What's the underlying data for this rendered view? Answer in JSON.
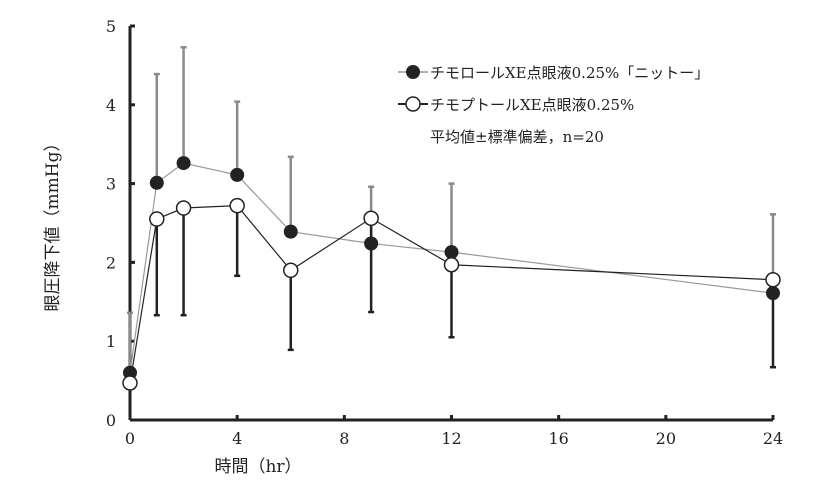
{
  "chart_data": {
    "type": "line",
    "title": "",
    "xlabel": "時間（hr）",
    "ylabel": "眼圧降下値（mmHg）",
    "xlim": [
      0,
      24
    ],
    "ylim": [
      0,
      5
    ],
    "xticks": [
      0,
      4,
      8,
      12,
      16,
      20,
      24
    ],
    "yticks": [
      0,
      1,
      2,
      3,
      4,
      5
    ],
    "grid": false,
    "legend_position": "top-right",
    "note": "平均値±標準偏差，n=20",
    "x": [
      0,
      1,
      2,
      4,
      6,
      9,
      12,
      24
    ],
    "series": [
      {
        "name": "チモロールXE点眼液0.25%「ニットー」",
        "marker": "filled-circle",
        "line_color": "#999999",
        "error_direction": "up",
        "values": [
          0.6,
          3.01,
          3.26,
          3.11,
          2.39,
          2.24,
          2.13,
          1.61
        ],
        "sd_bound": [
          1.36,
          4.39,
          4.73,
          4.04,
          3.34,
          2.96,
          3.0,
          2.61
        ]
      },
      {
        "name": "チモプトールXE点眼液0.25%",
        "marker": "open-circle",
        "line_color": "#222222",
        "error_direction": "down",
        "values": [
          0.47,
          2.55,
          2.69,
          2.72,
          1.9,
          2.56,
          1.97,
          1.78
        ],
        "sd_bound": [
          null,
          1.33,
          1.33,
          1.83,
          0.89,
          1.37,
          1.05,
          0.67
        ]
      }
    ]
  }
}
